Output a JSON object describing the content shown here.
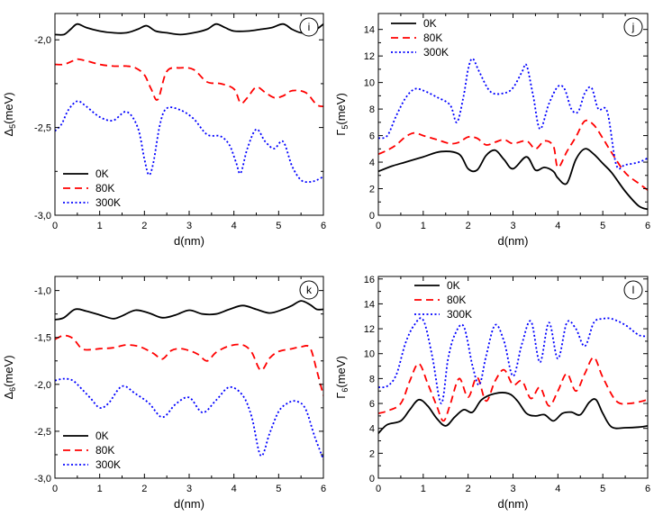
{
  "chart_data": [
    {
      "type": "line",
      "panel_label": "i",
      "xlabel": "d(nm)",
      "ylabel_main": "Δ",
      "ylabel_sub": "5",
      "ylabel_unit": "(meV)",
      "xlim": [
        0,
        6
      ],
      "ylim": [
        -3.0,
        -1.85
      ],
      "xticks": [
        0,
        1,
        2,
        3,
        4,
        5,
        6
      ],
      "xtick_labels": [
        "0",
        "1",
        "2",
        "3",
        "4",
        "5",
        "6"
      ],
      "yticks": [
        -3.0,
        -2.5,
        -2.0
      ],
      "ytick_labels": [
        "-3,0",
        "-2,5",
        "-2,0"
      ],
      "legend": "bottom-left",
      "series": [
        {
          "name": "0K",
          "color": "#000000",
          "dash": "solid",
          "x": [
            0,
            0.2,
            0.35,
            0.5,
            0.7,
            1.0,
            1.3,
            1.6,
            1.85,
            2.05,
            2.25,
            2.5,
            2.8,
            3.1,
            3.4,
            3.6,
            3.8,
            4.0,
            4.3,
            4.6,
            4.85,
            5.1,
            5.3,
            5.5,
            5.7,
            5.85,
            6
          ],
          "y": [
            -1.97,
            -1.97,
            -1.94,
            -1.91,
            -1.93,
            -1.95,
            -1.96,
            -1.96,
            -1.94,
            -1.92,
            -1.95,
            -1.96,
            -1.97,
            -1.96,
            -1.94,
            -1.91,
            -1.93,
            -1.95,
            -1.95,
            -1.94,
            -1.93,
            -1.91,
            -1.94,
            -1.96,
            -1.96,
            -1.94,
            -1.91
          ]
        },
        {
          "name": "80K",
          "color": "#ff0000",
          "dash": "dash",
          "x": [
            0,
            0.2,
            0.4,
            0.5,
            0.7,
            1.0,
            1.3,
            1.6,
            1.8,
            2.0,
            2.15,
            2.3,
            2.5,
            2.8,
            3.1,
            3.4,
            3.7,
            4.0,
            4.15,
            4.3,
            4.5,
            4.7,
            4.9,
            5.1,
            5.3,
            5.6,
            5.85,
            6
          ],
          "y": [
            -2.14,
            -2.14,
            -2.12,
            -2.11,
            -2.12,
            -2.14,
            -2.15,
            -2.15,
            -2.16,
            -2.2,
            -2.28,
            -2.34,
            -2.18,
            -2.16,
            -2.17,
            -2.24,
            -2.25,
            -2.28,
            -2.36,
            -2.33,
            -2.27,
            -2.3,
            -2.33,
            -2.32,
            -2.29,
            -2.3,
            -2.37,
            -2.38
          ]
        },
        {
          "name": "300K",
          "color": "#0000ff",
          "dash": "dot",
          "x": [
            0,
            0.15,
            0.3,
            0.5,
            0.7,
            1.0,
            1.3,
            1.6,
            1.85,
            2.0,
            2.1,
            2.2,
            2.35,
            2.5,
            2.8,
            3.1,
            3.4,
            3.7,
            3.9,
            4.05,
            4.15,
            4.3,
            4.5,
            4.7,
            4.9,
            5.1,
            5.3,
            5.5,
            5.7,
            5.85,
            6
          ],
          "y": [
            -2.52,
            -2.48,
            -2.4,
            -2.35,
            -2.38,
            -2.44,
            -2.46,
            -2.41,
            -2.5,
            -2.68,
            -2.77,
            -2.7,
            -2.48,
            -2.39,
            -2.4,
            -2.45,
            -2.54,
            -2.55,
            -2.6,
            -2.7,
            -2.76,
            -2.62,
            -2.51,
            -2.58,
            -2.62,
            -2.58,
            -2.72,
            -2.8,
            -2.81,
            -2.8,
            -2.78
          ]
        }
      ]
    },
    {
      "type": "line",
      "panel_label": "j",
      "xlabel": "d(nm)",
      "ylabel_main": "Γ",
      "ylabel_sub": "5",
      "ylabel_unit": "(meV)",
      "xlim": [
        0,
        6
      ],
      "ylim": [
        0,
        15.2
      ],
      "xticks": [
        0,
        1,
        2,
        3,
        4,
        5,
        6
      ],
      "xtick_labels": [
        "0",
        "1",
        "2",
        "3",
        "4",
        "5",
        "6"
      ],
      "yticks": [
        0,
        2,
        4,
        6,
        8,
        10,
        12,
        14
      ],
      "ytick_labels": [
        "0",
        "2",
        "4",
        "6",
        "8",
        "10",
        "12",
        "14"
      ],
      "legend": "top-left",
      "series": [
        {
          "name": "0K",
          "color": "#000000",
          "dash": "solid",
          "x": [
            0,
            0.3,
            0.6,
            1.0,
            1.4,
            1.8,
            2.0,
            2.2,
            2.4,
            2.6,
            2.8,
            3.0,
            3.3,
            3.5,
            3.7,
            3.9,
            4.0,
            4.2,
            4.4,
            4.6,
            4.8,
            5.0,
            5.2,
            5.5,
            5.8,
            6
          ],
          "y": [
            3.3,
            3.7,
            4.0,
            4.4,
            4.8,
            4.6,
            3.5,
            3.4,
            4.5,
            4.9,
            4.2,
            3.5,
            4.4,
            3.4,
            3.6,
            3.3,
            2.8,
            2.4,
            4.2,
            5.0,
            4.6,
            3.9,
            3.2,
            1.8,
            0.7,
            0.45
          ]
        },
        {
          "name": "80K",
          "color": "#ff0000",
          "dash": "dash",
          "x": [
            0,
            0.2,
            0.4,
            0.6,
            0.8,
            1.0,
            1.3,
            1.6,
            1.8,
            2.0,
            2.2,
            2.4,
            2.6,
            2.8,
            3.0,
            3.3,
            3.5,
            3.7,
            3.9,
            4.0,
            4.2,
            4.4,
            4.6,
            4.8,
            5.0,
            5.2,
            5.5,
            5.8,
            6
          ],
          "y": [
            4.6,
            4.9,
            5.3,
            5.9,
            6.2,
            6.0,
            5.7,
            5.4,
            5.5,
            5.9,
            5.8,
            5.3,
            5.5,
            5.7,
            5.4,
            5.6,
            5.0,
            5.6,
            5.2,
            3.6,
            4.8,
            5.9,
            7.1,
            6.8,
            5.8,
            4.7,
            3.2,
            2.4,
            1.9
          ]
        },
        {
          "name": "300K",
          "color": "#0000ff",
          "dash": "dot",
          "x": [
            0,
            0.2,
            0.4,
            0.6,
            0.8,
            1.0,
            1.3,
            1.6,
            1.75,
            1.9,
            2.0,
            2.1,
            2.25,
            2.5,
            2.8,
            3.0,
            3.2,
            3.3,
            3.45,
            3.6,
            3.8,
            4.0,
            4.15,
            4.3,
            4.45,
            4.6,
            4.75,
            4.9,
            5.1,
            5.3,
            5.5,
            5.8,
            6
          ],
          "y": [
            5.8,
            6.0,
            7.5,
            8.8,
            9.5,
            9.4,
            8.9,
            8.3,
            7.0,
            9.0,
            11.0,
            11.8,
            10.8,
            9.3,
            9.2,
            9.6,
            10.8,
            11.3,
            9.0,
            6.5,
            8.4,
            9.7,
            9.5,
            8.0,
            7.8,
            9.2,
            9.6,
            8.0,
            7.8,
            3.8,
            3.8,
            4.0,
            4.3
          ]
        }
      ]
    },
    {
      "type": "line",
      "panel_label": "k",
      "xlabel": "d(nm)",
      "ylabel_main": "Δ",
      "ylabel_sub": "6",
      "ylabel_unit": "(meV)",
      "xlim": [
        0,
        6
      ],
      "ylim": [
        -3.0,
        -0.85
      ],
      "xticks": [
        0,
        1,
        2,
        3,
        4,
        5,
        6
      ],
      "xtick_labels": [
        "0",
        "1",
        "2",
        "3",
        "4",
        "5",
        "6"
      ],
      "yticks": [
        -3.0,
        -2.5,
        -2.0,
        -1.5,
        -1.0
      ],
      "ytick_labels": [
        "-3,0",
        "-2,5",
        "-2,0",
        "-1,5",
        "-1,0"
      ],
      "legend": "bottom-left",
      "series": [
        {
          "name": "0K",
          "color": "#000000",
          "dash": "solid",
          "x": [
            0,
            0.2,
            0.45,
            0.7,
            1.0,
            1.3,
            1.5,
            1.8,
            2.1,
            2.4,
            2.7,
            3.0,
            3.3,
            3.6,
            3.9,
            4.2,
            4.5,
            4.8,
            5.1,
            5.3,
            5.5,
            5.7,
            5.85,
            6
          ],
          "y": [
            -1.31,
            -1.29,
            -1.2,
            -1.22,
            -1.26,
            -1.3,
            -1.27,
            -1.21,
            -1.24,
            -1.29,
            -1.26,
            -1.21,
            -1.25,
            -1.25,
            -1.2,
            -1.16,
            -1.2,
            -1.24,
            -1.2,
            -1.16,
            -1.11,
            -1.15,
            -1.2,
            -1.2
          ]
        },
        {
          "name": "80K",
          "color": "#ff0000",
          "dash": "dash",
          "x": [
            0,
            0.2,
            0.4,
            0.6,
            0.8,
            1.0,
            1.3,
            1.6,
            1.9,
            2.2,
            2.4,
            2.6,
            2.8,
            3.0,
            3.2,
            3.4,
            3.6,
            3.9,
            4.2,
            4.4,
            4.6,
            4.8,
            5.0,
            5.3,
            5.5,
            5.7,
            5.85,
            6
          ],
          "y": [
            -1.52,
            -1.48,
            -1.51,
            -1.62,
            -1.63,
            -1.62,
            -1.61,
            -1.58,
            -1.6,
            -1.67,
            -1.73,
            -1.64,
            -1.62,
            -1.64,
            -1.68,
            -1.75,
            -1.66,
            -1.59,
            -1.58,
            -1.66,
            -1.85,
            -1.72,
            -1.65,
            -1.62,
            -1.6,
            -1.61,
            -1.85,
            -2.12
          ]
        },
        {
          "name": "300K",
          "color": "#0000ff",
          "dash": "dot",
          "x": [
            0,
            0.2,
            0.4,
            0.6,
            0.8,
            1.0,
            1.2,
            1.5,
            1.8,
            2.1,
            2.4,
            2.7,
            3.0,
            3.3,
            3.6,
            3.9,
            4.2,
            4.4,
            4.6,
            4.8,
            5.0,
            5.2,
            5.4,
            5.6,
            5.8,
            6
          ],
          "y": [
            -1.96,
            -1.94,
            -1.96,
            -2.05,
            -2.15,
            -2.25,
            -2.2,
            -2.02,
            -2.1,
            -2.2,
            -2.35,
            -2.21,
            -2.14,
            -2.3,
            -2.17,
            -2.03,
            -2.12,
            -2.35,
            -2.76,
            -2.52,
            -2.29,
            -2.2,
            -2.18,
            -2.26,
            -2.55,
            -2.8
          ]
        }
      ]
    },
    {
      "type": "line",
      "panel_label": "l",
      "xlabel": "d(nm)",
      "ylabel_main": "Γ",
      "ylabel_sub": "6",
      "ylabel_unit": "(meV)",
      "xlim": [
        0,
        6
      ],
      "ylim": [
        0,
        16.2
      ],
      "xticks": [
        0,
        1,
        2,
        3,
        4,
        5,
        6
      ],
      "xtick_labels": [
        "0",
        "1",
        "2",
        "3",
        "4",
        "5",
        "6"
      ],
      "yticks": [
        0,
        2,
        4,
        6,
        8,
        10,
        12,
        14,
        16
      ],
      "ytick_labels": [
        "0",
        "2",
        "4",
        "6",
        "8",
        "10",
        "12",
        "14",
        "16"
      ],
      "legend": "top-center",
      "series": [
        {
          "name": "0K",
          "color": "#000000",
          "dash": "solid",
          "x": [
            0,
            0.2,
            0.5,
            0.7,
            0.9,
            1.1,
            1.3,
            1.5,
            1.7,
            1.9,
            2.1,
            2.3,
            2.6,
            2.9,
            3.1,
            3.3,
            3.5,
            3.7,
            3.9,
            4.1,
            4.3,
            4.5,
            4.7,
            4.85,
            5.0,
            5.2,
            5.5,
            5.8,
            6
          ],
          "y": [
            3.6,
            4.3,
            4.6,
            5.5,
            6.3,
            5.8,
            4.8,
            4.2,
            4.9,
            5.5,
            5.3,
            6.3,
            6.8,
            6.8,
            6.2,
            5.2,
            5.0,
            5.1,
            4.6,
            5.2,
            5.3,
            5.1,
            6.1,
            6.3,
            5.2,
            4.1,
            4.05,
            4.1,
            4.2
          ]
        },
        {
          "name": "80K",
          "color": "#ff0000",
          "dash": "dash",
          "x": [
            0,
            0.2,
            0.5,
            0.7,
            0.9,
            1.1,
            1.3,
            1.45,
            1.6,
            1.8,
            2.0,
            2.2,
            2.4,
            2.6,
            2.8,
            3.0,
            3.2,
            3.4,
            3.6,
            3.8,
            4.0,
            4.2,
            4.4,
            4.6,
            4.8,
            5.0,
            5.3,
            5.6,
            6
          ],
          "y": [
            5.2,
            5.4,
            6.0,
            7.8,
            9.2,
            7.6,
            5.8,
            4.6,
            5.9,
            8.0,
            6.5,
            8.1,
            6.2,
            7.8,
            8.7,
            7.5,
            7.8,
            6.4,
            7.3,
            5.8,
            7.0,
            8.4,
            7.0,
            8.4,
            9.7,
            8.1,
            6.2,
            6.0,
            6.3
          ]
        },
        {
          "name": "300K",
          "color": "#0000ff",
          "dash": "dot",
          "x": [
            0,
            0.2,
            0.4,
            0.6,
            0.8,
            1.0,
            1.2,
            1.4,
            1.55,
            1.7,
            1.9,
            2.1,
            2.25,
            2.4,
            2.6,
            2.8,
            3.0,
            3.2,
            3.4,
            3.6,
            3.8,
            4.0,
            4.2,
            4.4,
            4.6,
            4.8,
            5.0,
            5.2,
            5.5,
            5.8,
            6
          ],
          "y": [
            7.3,
            7.4,
            8.3,
            10.8,
            12.3,
            12.7,
            9.8,
            6.0,
            9.5,
            11.5,
            12.2,
            9.0,
            7.5,
            9.8,
            12.3,
            11.0,
            8.2,
            10.8,
            12.6,
            9.3,
            12.5,
            9.6,
            12.5,
            12.0,
            10.6,
            12.5,
            12.8,
            12.8,
            12.3,
            11.5,
            11.4
          ]
        }
      ]
    }
  ]
}
